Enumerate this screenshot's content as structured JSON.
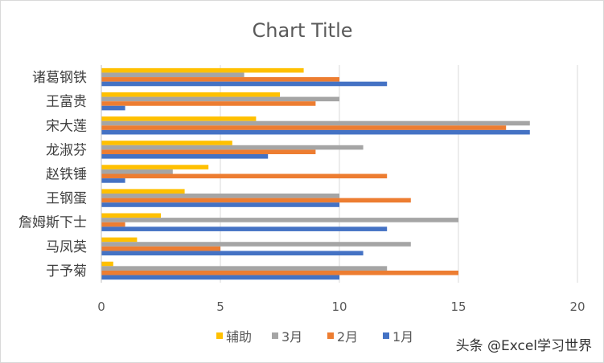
{
  "chart_data": {
    "type": "bar",
    "orientation": "horizontal",
    "title": "Chart Title",
    "categories": [
      "诸葛钢铁",
      "王富贵",
      "宋大莲",
      "龙淑芬",
      "赵铁锤",
      "王钢蛋",
      "詹姆斯下士",
      "马凤英",
      "于予菊"
    ],
    "series": [
      {
        "name": "辅助",
        "color": "#ffc000",
        "values": [
          8.5,
          7.5,
          6.5,
          5.5,
          4.5,
          3.5,
          2.5,
          1.5,
          0.5
        ]
      },
      {
        "name": "3月",
        "color": "#a5a5a5",
        "values": [
          6,
          10,
          18,
          11,
          3,
          10,
          15,
          13,
          12
        ]
      },
      {
        "name": "2月",
        "color": "#ed7d31",
        "values": [
          10,
          9,
          17,
          9,
          12,
          13,
          1,
          5,
          15
        ]
      },
      {
        "name": "1月",
        "color": "#4472c4",
        "values": [
          12,
          1,
          18,
          7,
          1,
          10,
          12,
          11,
          10
        ]
      }
    ],
    "xlim": [
      0,
      20
    ],
    "xticks": [
      "0",
      "5",
      "10",
      "15",
      "20"
    ],
    "grid": true,
    "legend_position": "bottom",
    "legend_order": [
      "辅助",
      "3月",
      "2月",
      "1月"
    ]
  },
  "watermark": "头条 @Excel学习世界"
}
